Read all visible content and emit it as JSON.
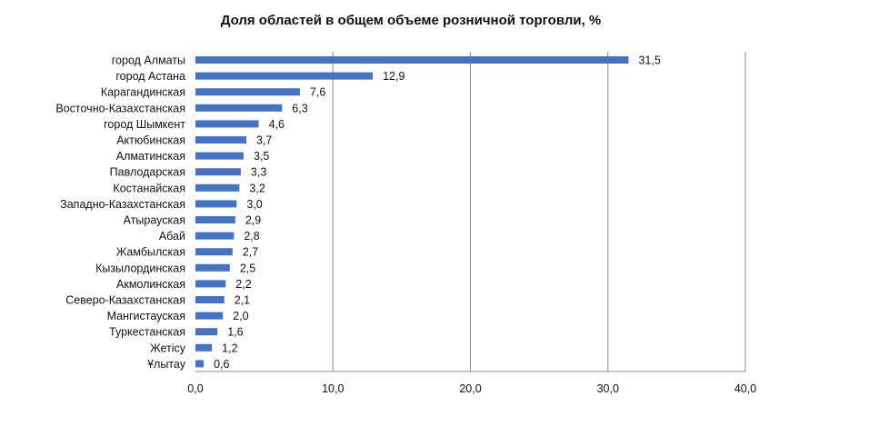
{
  "chart_data": {
    "type": "bar",
    "orientation": "horizontal",
    "title": "Доля областей в общем объеме розничной торговли, %",
    "xlabel": "",
    "ylabel": "",
    "xlim": [
      0,
      40
    ],
    "grid": "vertical",
    "legend": "none",
    "bar_color": "#4472c4",
    "ticks": [
      "0,0",
      "10,0",
      "20,0",
      "30,0",
      "40,0"
    ],
    "tick_values": [
      0,
      10,
      20,
      30,
      40
    ],
    "categories": [
      "город Алматы",
      "город Астана",
      "Карагандинская",
      "Восточно-Казахстанская",
      "город Шымкент",
      "Актюбинская",
      "Алматинская",
      "Павлодарская",
      "Костанайская",
      "Западно-Казахстанская",
      "Атырауская",
      "Абай",
      "Жамбылская",
      "Кызылординская",
      "Акмолинская",
      "Северо-Казахстанская",
      "Мангистауская",
      "Туркестанская",
      "Жетісу",
      "Ұлытау"
    ],
    "values": [
      31.5,
      12.9,
      7.6,
      6.3,
      4.6,
      3.7,
      3.5,
      3.3,
      3.2,
      3.0,
      2.9,
      2.8,
      2.7,
      2.5,
      2.2,
      2.1,
      2.0,
      1.6,
      1.2,
      0.6
    ],
    "labels": [
      "31,5",
      "12,9",
      "7,6",
      "6,3",
      "4,6",
      "3,7",
      "3,5",
      "3,3",
      "3,2",
      "3,0",
      "2,9",
      "2,8",
      "2,7",
      "2,5",
      "2,2",
      "2,1",
      "2,0",
      "1,6",
      "1,2",
      "0,6"
    ]
  }
}
